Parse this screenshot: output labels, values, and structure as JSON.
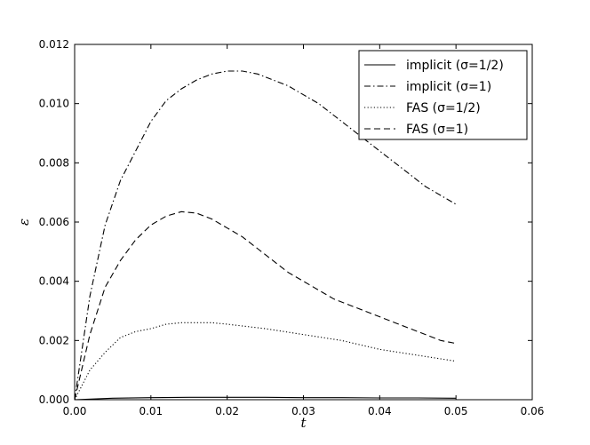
{
  "chart_data": {
    "type": "line",
    "xlabel": "t",
    "ylabel": "ε",
    "xlim": [
      0,
      0.06
    ],
    "ylim": [
      0,
      0.012
    ],
    "x_ticks": [
      "0.00",
      "0.01",
      "0.02",
      "0.03",
      "0.04",
      "0.05",
      "0.06"
    ],
    "y_ticks": [
      "0.000",
      "0.002",
      "0.004",
      "0.006",
      "0.008",
      "0.010",
      "0.012"
    ],
    "grid": false,
    "legend_position": "top-right",
    "series": [
      {
        "name": "implicit (σ=1/2)",
        "dash": "solid",
        "x": [
          0,
          0.005,
          0.01,
          0.015,
          0.02,
          0.025,
          0.03,
          0.035,
          0.04,
          0.045,
          0.05
        ],
        "y": [
          0,
          5e-05,
          7e-05,
          8e-05,
          8e-05,
          8e-05,
          7e-05,
          7e-05,
          6e-05,
          6e-05,
          5e-05
        ]
      },
      {
        "name": "implicit (σ=1)",
        "dash": "dashdot",
        "x": [
          0,
          0.002,
          0.004,
          0.006,
          0.008,
          0.01,
          0.012,
          0.014,
          0.016,
          0.018,
          0.02,
          0.022,
          0.024,
          0.026,
          0.028,
          0.03,
          0.032,
          0.034,
          0.036,
          0.038,
          0.04,
          0.042,
          0.044,
          0.046,
          0.048,
          0.05
        ],
        "y": [
          0,
          0.0035,
          0.0059,
          0.0074,
          0.0084,
          0.0094,
          0.0101,
          0.0105,
          0.0108,
          0.011,
          0.0111,
          0.0111,
          0.011,
          0.0108,
          0.0106,
          0.0103,
          0.01,
          0.0096,
          0.0092,
          0.0088,
          0.0084,
          0.008,
          0.0076,
          0.0072,
          0.0069,
          0.0066
        ]
      },
      {
        "name": "FAS (σ=1/2)",
        "dash": "dotted",
        "x": [
          0,
          0.002,
          0.004,
          0.006,
          0.008,
          0.01,
          0.012,
          0.014,
          0.016,
          0.018,
          0.02,
          0.025,
          0.03,
          0.035,
          0.04,
          0.045,
          0.05
        ],
        "y": [
          0,
          0.001,
          0.0016,
          0.0021,
          0.0023,
          0.0024,
          0.00255,
          0.0026,
          0.0026,
          0.0026,
          0.00255,
          0.0024,
          0.0022,
          0.002,
          0.0017,
          0.0015,
          0.0013
        ]
      },
      {
        "name": "FAS (σ=1)",
        "dash": "dashed",
        "x": [
          0,
          0.002,
          0.004,
          0.006,
          0.008,
          0.01,
          0.012,
          0.014,
          0.016,
          0.018,
          0.02,
          0.022,
          0.024,
          0.026,
          0.028,
          0.03,
          0.032,
          0.034,
          0.036,
          0.038,
          0.04,
          0.042,
          0.044,
          0.046,
          0.048,
          0.05
        ],
        "y": [
          0,
          0.0022,
          0.0038,
          0.0047,
          0.0054,
          0.0059,
          0.0062,
          0.00635,
          0.0063,
          0.0061,
          0.0058,
          0.0055,
          0.0051,
          0.0047,
          0.0043,
          0.004,
          0.0037,
          0.0034,
          0.0032,
          0.003,
          0.0028,
          0.0026,
          0.0024,
          0.0022,
          0.002,
          0.0019
        ]
      }
    ]
  }
}
